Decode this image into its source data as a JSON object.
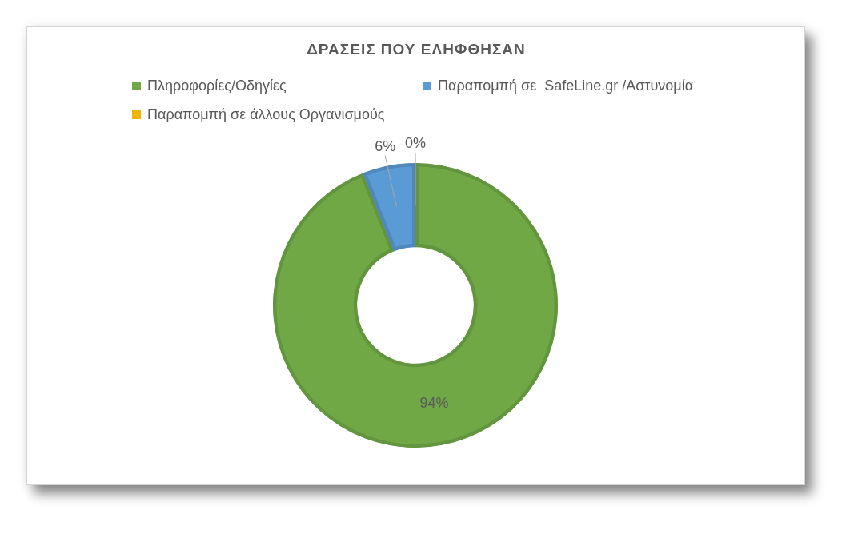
{
  "chart_data": {
    "type": "donut",
    "title": "ΔΡΑΣΕΙΣ ΠΟΥ ΕΛΗΦΘΗΣΑΝ",
    "categories": [
      "Πληροφορίες/Οδηγίες",
      "Παραπομπή σε  SafeLine.gr /Αστυνομία",
      "Παραπομπή σε άλλους Οργανισμούς"
    ],
    "values": [
      94,
      6,
      0
    ],
    "colors": [
      "#70a846",
      "#5b9bd5",
      "#f0b400"
    ],
    "value_labels": [
      "94%",
      "6%",
      "0%"
    ],
    "legend": "top"
  }
}
